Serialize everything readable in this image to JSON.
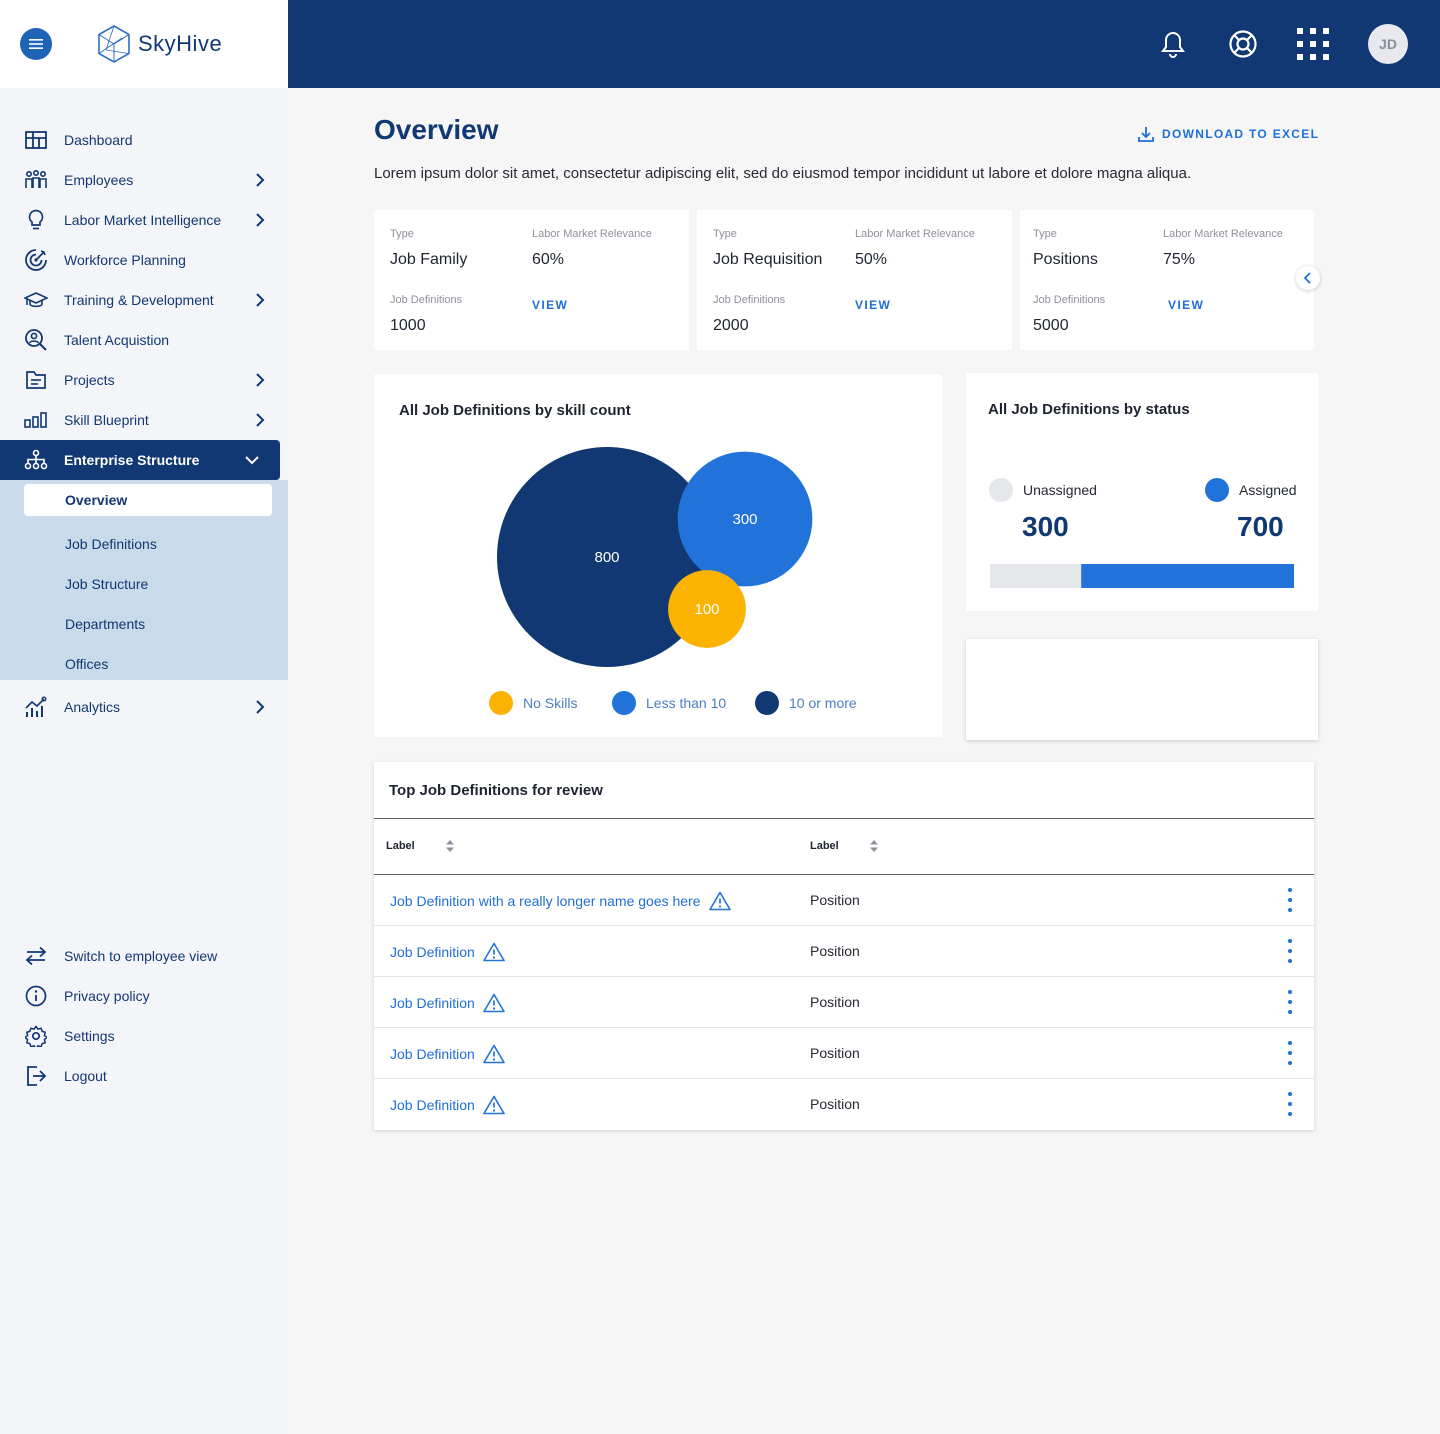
{
  "brand": {
    "name": "SkyHive"
  },
  "header": {
    "avatar_initials": "JD",
    "icons": [
      "bell-icon",
      "help-ring-icon",
      "apps-grid-icon"
    ]
  },
  "sidebar": {
    "items": [
      {
        "label": "Dashboard",
        "icon": "grid-table-icon",
        "has_chevron": false
      },
      {
        "label": "Employees",
        "icon": "people-icon",
        "has_chevron": true
      },
      {
        "label": "Labor Market Intelligence",
        "icon": "lightbulb-icon",
        "has_chevron": true
      },
      {
        "label": "Workforce Planning",
        "icon": "target-icon",
        "has_chevron": false
      },
      {
        "label": "Training & Development",
        "icon": "graduation-cap-icon",
        "has_chevron": true
      },
      {
        "label": "Talent Acquistion",
        "icon": "person-search-icon",
        "has_chevron": false
      },
      {
        "label": "Projects",
        "icon": "folder-icon",
        "has_chevron": true
      },
      {
        "label": "Skill Blueprint",
        "icon": "bars-icon",
        "has_chevron": true
      },
      {
        "label": "Enterprise Structure",
        "icon": "hierarchy-icon",
        "has_chevron": true,
        "expanded": true
      }
    ],
    "subitems": [
      "Overview",
      "Job Definitions",
      "Job Structure",
      "Departments",
      "Offices"
    ],
    "after": {
      "label": "Analytics",
      "icon": "analytics-icon"
    },
    "bottom": [
      {
        "label": "Switch to employee view",
        "icon": "swap-icon"
      },
      {
        "label": "Privacy policy",
        "icon": "info-icon"
      },
      {
        "label": "Settings",
        "icon": "gear-icon"
      },
      {
        "label": "Logout",
        "icon": "logout-icon"
      }
    ]
  },
  "main": {
    "title": "Overview",
    "download_label": "DOWNLOAD TO EXCEL",
    "description": "Lorem ipsum dolor sit amet, consectetur adipiscing elit, sed do eiusmod tempor incididunt ut labore et dolore magna aliqua.",
    "summary_cards": [
      {
        "type_label": "Type",
        "type": "Job Family",
        "relevance_label": "Labor Market Relevance",
        "relevance": "60%",
        "defs_label": "Job Definitions",
        "defs": "1000",
        "view": "VIEW"
      },
      {
        "type_label": "Type",
        "type": "Job Requisition",
        "relevance_label": "Labor Market Relevance",
        "relevance": "50%",
        "defs_label": "Job Definitions",
        "defs": "2000",
        "view": "VIEW"
      },
      {
        "type_label": "Type",
        "type": "Positions",
        "relevance_label": "Labor Market Relevance",
        "relevance": "75%",
        "defs_label": "Job Definitions",
        "defs": "5000",
        "view": "VIEW"
      }
    ],
    "skill_chart": {
      "title": "All Job Definitions by skill count",
      "legend": [
        {
          "label": "No Skills",
          "color": "#fbb200"
        },
        {
          "label": "Less than 10",
          "color": "#2173da"
        },
        {
          "label": "10 or more",
          "color": "#113873"
        }
      ]
    },
    "status_chart": {
      "title": "All Job Definitions by status",
      "unassigned_label": "Unassigned",
      "assigned_label": "Assigned",
      "colors": {
        "unassigned": "#e6e7eb",
        "assigned": "#2173da"
      }
    },
    "table": {
      "title": "Top Job Definitions for review",
      "headers": [
        "Label",
        "Label"
      ],
      "rows": [
        {
          "name": "Job Definition with a really longer name goes here",
          "position": "Position"
        },
        {
          "name": "Job Definition",
          "position": "Position"
        },
        {
          "name": "Job Definition",
          "position": "Position"
        },
        {
          "name": "Job Definition",
          "position": "Position"
        },
        {
          "name": "Job Definition",
          "position": "Position"
        }
      ]
    }
  },
  "chart_data": [
    {
      "type": "bubble",
      "title": "All Job Definitions by skill count",
      "series": [
        {
          "name": "10 or more",
          "value": 800,
          "color": "#113873"
        },
        {
          "name": "Less than 10",
          "value": 300,
          "color": "#2173da"
        },
        {
          "name": "No Skills",
          "value": 100,
          "color": "#fbb200"
        }
      ]
    },
    {
      "type": "bar",
      "title": "All Job Definitions by status",
      "categories": [
        "Unassigned",
        "Assigned"
      ],
      "values": [
        300,
        700
      ]
    }
  ]
}
